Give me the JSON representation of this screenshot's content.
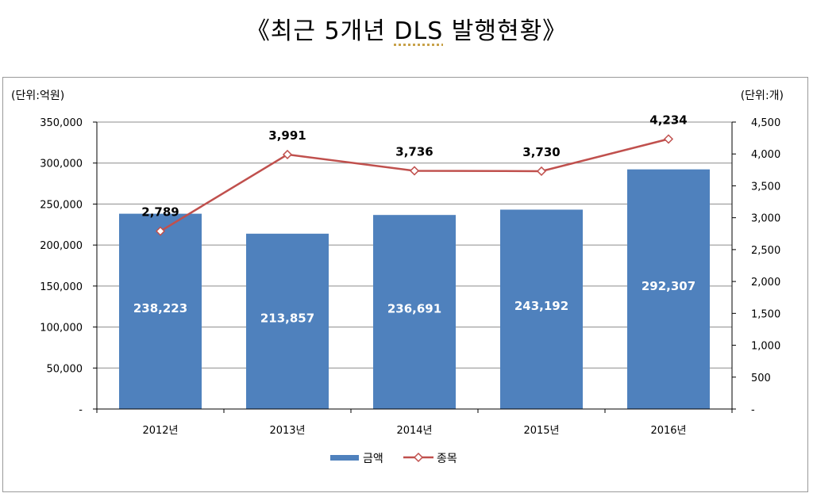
{
  "title": {
    "prefix": "《최근 5개년 ",
    "dls": "DLS",
    "suffix": " 발행현황》"
  },
  "chart_data": {
    "type": "bar",
    "categories": [
      "2012년",
      "2013년",
      "2014년",
      "2015년",
      "2016년"
    ],
    "series": [
      {
        "name": "금액",
        "type": "bar",
        "axis": "left",
        "color": "#4f81bd",
        "values": [
          238223,
          213857,
          236691,
          243192,
          292307
        ],
        "labels": [
          "238,223",
          "213,857",
          "236,691",
          "243,192",
          "292,307"
        ]
      },
      {
        "name": "종목",
        "type": "line",
        "axis": "right",
        "color": "#c0504d",
        "values": [
          2789,
          3991,
          3736,
          3730,
          4234
        ],
        "labels": [
          "2,789",
          "3,991",
          "3,736",
          "3,730",
          "4,234"
        ]
      }
    ],
    "left_axis": {
      "unit_label": "(단위:억원)",
      "ylim": [
        0,
        350000
      ],
      "ticks": [
        "-",
        "50,000",
        "100,000",
        "150,000",
        "200,000",
        "250,000",
        "300,000",
        "350,000"
      ]
    },
    "right_axis": {
      "unit_label": "(단위:개)",
      "ylim": [
        0,
        4500
      ],
      "ticks": [
        "-",
        "500",
        "1,000",
        "1,500",
        "2,000",
        "2,500",
        "3,000",
        "3,500",
        "4,000",
        "4,500"
      ]
    },
    "grid": true,
    "legend_position": "bottom"
  }
}
